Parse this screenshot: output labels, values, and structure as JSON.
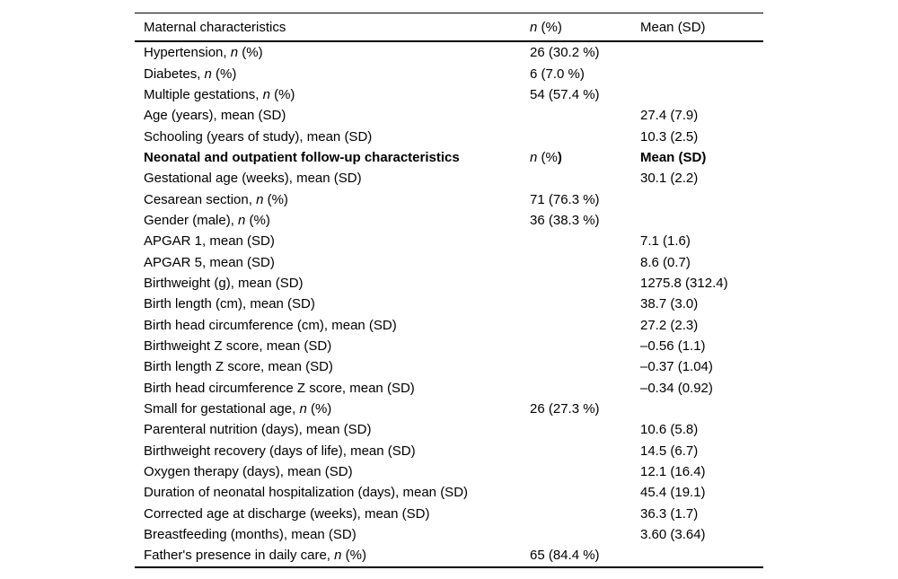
{
  "table": {
    "columns": [
      {
        "label": "Maternal characteristics"
      },
      {
        "label": "*n* (%)"
      },
      {
        "label": "Mean (SD)"
      }
    ],
    "rows": [
      {
        "label": "Hypertension, *n* (%)",
        "n_pct": "26 (30.2 %)",
        "mean_sd": "",
        "section_header": false
      },
      {
        "label": "Diabetes, *n* (%)",
        "n_pct": "6 (7.0 %)",
        "mean_sd": "",
        "section_header": false
      },
      {
        "label": "Multiple gestations, *n* (%)",
        "n_pct": "54 (57.4 %)",
        "mean_sd": "",
        "section_header": false
      },
      {
        "label": "Age (years), mean (SD)",
        "n_pct": "",
        "mean_sd": "27.4 (7.9)",
        "section_header": false
      },
      {
        "label": "Schooling (years of study), mean (SD)",
        "n_pct": "",
        "mean_sd": "10.3 (2.5)",
        "section_header": false
      },
      {
        "label": "**Neonatal and outpatient follow-up characteristics**",
        "n_pct": "*n* (%**)**",
        "mean_sd": "**Mean (SD)**",
        "section_header": true
      },
      {
        "label": "Gestational age (weeks), mean (SD)",
        "n_pct": "",
        "mean_sd": "30.1 (2.2)",
        "section_header": false
      },
      {
        "label": "Cesarean section, *n* (%)",
        "n_pct": "71 (76.3 %)",
        "mean_sd": "",
        "section_header": false
      },
      {
        "label": "Gender (male), *n* (%)",
        "n_pct": "36 (38.3 %)",
        "mean_sd": "",
        "section_header": false
      },
      {
        "label": "APGAR 1, mean (SD)",
        "n_pct": "",
        "mean_sd": "7.1 (1.6)",
        "section_header": false
      },
      {
        "label": "APGAR 5, mean (SD)",
        "n_pct": "",
        "mean_sd": "8.6 (0.7)",
        "section_header": false
      },
      {
        "label": "Birthweight (g), mean (SD)",
        "n_pct": "",
        "mean_sd": "1275.8 (312.4)",
        "section_header": false
      },
      {
        "label": "Birth length (cm), mean (SD)",
        "n_pct": "",
        "mean_sd": "38.7 (3.0)",
        "section_header": false
      },
      {
        "label": "Birth head circumference (cm), mean (SD)",
        "n_pct": "",
        "mean_sd": "27.2 (2.3)",
        "section_header": false
      },
      {
        "label": "Birthweight Z score, mean (SD)",
        "n_pct": "",
        "mean_sd": "–0.56 (1.1)",
        "section_header": false
      },
      {
        "label": "Birth length Z score, mean (SD)",
        "n_pct": "",
        "mean_sd": "–0.37 (1.04)",
        "section_header": false
      },
      {
        "label": "Birth head circumference Z score, mean (SD)",
        "n_pct": "",
        "mean_sd": "–0.34 (0.92)",
        "section_header": false
      },
      {
        "label": "Small for gestational age, *n* (%)",
        "n_pct": "26 (27.3 %)",
        "mean_sd": "",
        "section_header": false
      },
      {
        "label": "Parenteral nutrition (days), mean (SD)",
        "n_pct": "",
        "mean_sd": "10.6 (5.8)",
        "section_header": false
      },
      {
        "label": "Birthweight recovery (days of life), mean (SD)",
        "n_pct": "",
        "mean_sd": "14.5 (6.7)",
        "section_header": false
      },
      {
        "label": "Oxygen therapy (days), mean (SD)",
        "n_pct": "",
        "mean_sd": "12.1 (16.4)",
        "section_header": false
      },
      {
        "label": "Duration of neonatal hospitalization (days), mean (SD)",
        "n_pct": "",
        "mean_sd": "45.4 (19.1)",
        "section_header": false
      },
      {
        "label": "Corrected age at discharge (weeks), mean (SD)",
        "n_pct": "",
        "mean_sd": "36.3 (1.7)",
        "section_header": false
      },
      {
        "label": "Breastfeeding (months), mean (SD)",
        "n_pct": "",
        "mean_sd": "3.60 (3.64)",
        "section_header": false
      },
      {
        "label": "Father's presence in daily care, *n* (%)",
        "n_pct": "65 (84.4 %)",
        "mean_sd": "",
        "section_header": false
      }
    ]
  },
  "colors": {
    "text": "#000000",
    "rule": "#000000",
    "background": "#ffffff"
  }
}
